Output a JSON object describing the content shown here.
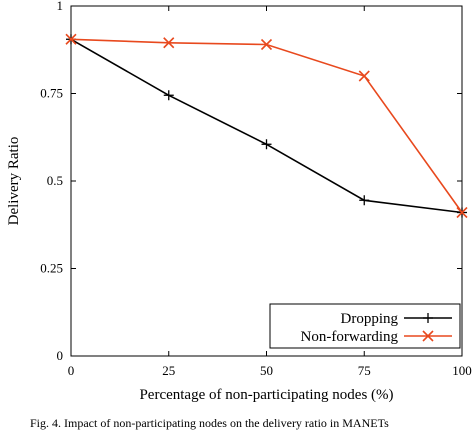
{
  "chart_data": {
    "type": "line",
    "title": "",
    "xlabel": "Percentage of non-participating nodes (%)",
    "ylabel": "Delivery Ratio",
    "xlim": [
      0,
      100
    ],
    "ylim": [
      0,
      1
    ],
    "x_ticks": [
      0,
      25,
      50,
      75,
      100
    ],
    "y_ticks": [
      0,
      0.25,
      0.5,
      0.75,
      1
    ],
    "x_tick_labels": [
      "0",
      "25",
      "50",
      "75",
      "100"
    ],
    "y_tick_labels": [
      "0",
      "0.25",
      "0.5",
      "0.75",
      "1"
    ],
    "x": [
      0,
      25,
      50,
      75,
      100
    ],
    "grid": false,
    "legend_position": "bottom-right",
    "series": [
      {
        "name": "Dropping",
        "values": [
          0.905,
          0.745,
          0.605,
          0.445,
          0.41
        ],
        "color": "#000000",
        "marker": "plus"
      },
      {
        "name": "Non-forwarding",
        "values": [
          0.905,
          0.895,
          0.89,
          0.8,
          0.41
        ],
        "color": "#e8491e",
        "marker": "cross"
      }
    ]
  },
  "caption": "Fig. 4. Impact of non-participating nodes on the delivery ratio in MANETs"
}
